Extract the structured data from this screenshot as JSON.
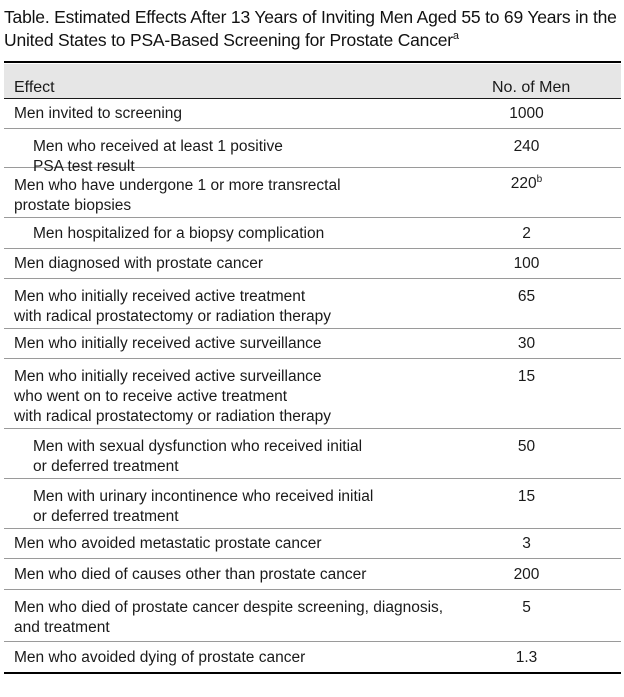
{
  "table": {
    "title": "Table. Estimated Effects After 13 Years of Inviting Men Aged 55 to 69 Years in the United States to PSA-Based Screening for Prostate Cancer",
    "title_footnote": "a",
    "header": {
      "effect": "Effect",
      "count": "No. of Men"
    },
    "rows": [
      {
        "effect": "Men invited to screening",
        "value": "1000",
        "mark": "",
        "indent": false
      },
      {
        "effect": "Men who received at least 1 positive\nPSA test result",
        "value": "240",
        "mark": "",
        "indent": true
      },
      {
        "effect": "Men who have undergone 1 or more transrectal\nprostate biopsies",
        "value": "220",
        "mark": "b",
        "indent": false
      },
      {
        "effect": "Men hospitalized for a biopsy complication",
        "value": "2",
        "mark": "",
        "indent": true
      },
      {
        "effect": "Men diagnosed with prostate cancer",
        "value": "100",
        "mark": "",
        "indent": false
      },
      {
        "effect": "Men who initially received active treatment\nwith radical prostatectomy or radiation therapy",
        "value": "65",
        "mark": "",
        "indent": false
      },
      {
        "effect": "Men who initially received active surveillance",
        "value": "30",
        "mark": "",
        "indent": false
      },
      {
        "effect": "Men who initially received active surveillance\nwho went on to receive active treatment\nwith radical prostatectomy or radiation therapy",
        "value": "15",
        "mark": "",
        "indent": false
      },
      {
        "effect": "Men with sexual dysfunction who received initial\nor deferred treatment",
        "value": "50",
        "mark": "",
        "indent": true
      },
      {
        "effect": "Men with urinary incontinence who received initial\nor deferred treatment",
        "value": "15",
        "mark": "",
        "indent": true
      },
      {
        "effect": "Men who avoided metastatic prostate cancer",
        "value": "3",
        "mark": "",
        "indent": false
      },
      {
        "effect": "Men who died of causes other than prostate cancer",
        "value": "200",
        "mark": "",
        "indent": false
      },
      {
        "effect": "Men who died of prostate cancer despite screening, diagnosis,\nand treatment",
        "value": "5",
        "mark": "",
        "indent": false
      },
      {
        "effect": "Men who avoided dying of prostate cancer",
        "value": "1.3",
        "mark": "",
        "indent": false
      }
    ]
  }
}
